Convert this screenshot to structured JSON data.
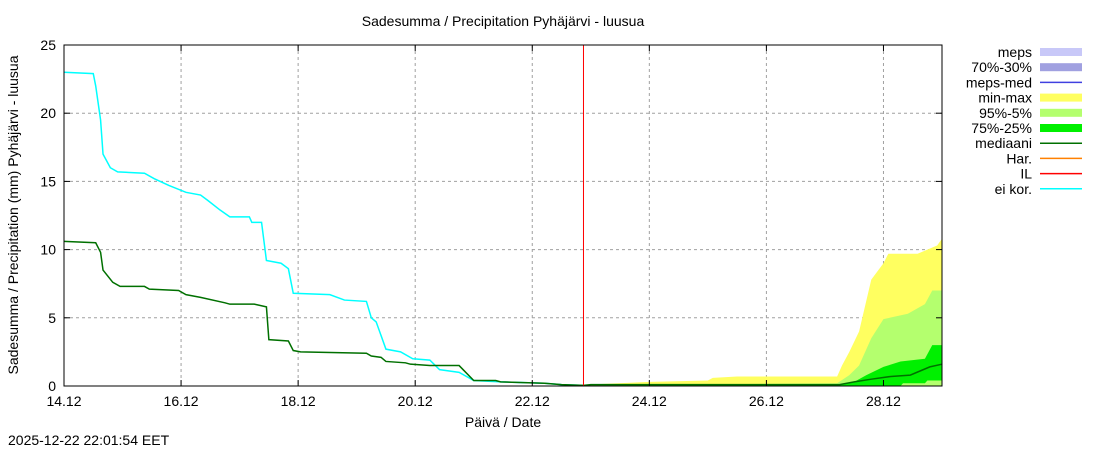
{
  "chart_data": {
    "type": "area",
    "title": "Sadesumma / Precipitation  Pyhäjärvi - luusua",
    "xlabel": "Päivä / Date",
    "ylabel": "Sadesumma / Precipitation (mm)  Pyhäjärvi - luusua",
    "timestamp": "2025-12-22 22:01:54 EET",
    "xlim": [
      "2025-12-14T00:00",
      "2025-12-29T00:00"
    ],
    "ylim": [
      0,
      25
    ],
    "grid": true,
    "legend_position": "right",
    "x_ticks": [
      {
        "t": "2025-12-14T00:00",
        "label": "14.12"
      },
      {
        "t": "2025-12-16T00:00",
        "label": "16.12"
      },
      {
        "t": "2025-12-18T00:00",
        "label": "18.12"
      },
      {
        "t": "2025-12-20T00:00",
        "label": "20.12"
      },
      {
        "t": "2025-12-22T00:00",
        "label": "22.12"
      },
      {
        "t": "2025-12-24T00:00",
        "label": "24.12"
      },
      {
        "t": "2025-12-26T00:00",
        "label": "26.12"
      },
      {
        "t": "2025-12-28T00:00",
        "label": "28.12"
      }
    ],
    "y_ticks": [
      0,
      5,
      10,
      15,
      20,
      25
    ],
    "legend": [
      {
        "name": "meps",
        "color": "#c8c8f8",
        "kind": "band"
      },
      {
        "name": "70%-30%",
        "color": "#a0a0e0",
        "kind": "band"
      },
      {
        "name": "meps-med",
        "color": "#4040e0",
        "kind": "line"
      },
      {
        "name": "min-max",
        "color": "#ffff60",
        "kind": "band"
      },
      {
        "name": "95%-5%",
        "color": "#b4ff6e",
        "kind": "band"
      },
      {
        "name": "75%-25%",
        "color": "#00f000",
        "kind": "band"
      },
      {
        "name": "mediaani",
        "color": "#007000",
        "kind": "line"
      },
      {
        "name": "Har.",
        "color": "#ff8000",
        "kind": "line"
      },
      {
        "name": "IL",
        "color": "#ff0000",
        "kind": "line"
      },
      {
        "name": "ei kor.",
        "color": "#00ffff",
        "kind": "line"
      }
    ],
    "IL_time": "2025-12-22T21:00",
    "bands": [
      {
        "name": "min-max",
        "color": "#ffff60",
        "upper": [
          [
            "2025-12-22T22:00",
            0.1
          ],
          [
            "2025-12-24T00:00",
            0.3
          ],
          [
            "2025-12-25T00:00",
            0.4
          ],
          [
            "2025-12-25T02:00",
            0.6
          ],
          [
            "2025-12-25T12:00",
            0.7
          ],
          [
            "2025-12-27T05:00",
            0.7
          ],
          [
            "2025-12-27T07:00",
            1.5
          ],
          [
            "2025-12-27T10:00",
            2.5
          ],
          [
            "2025-12-27T14:00",
            4.0
          ],
          [
            "2025-12-27T19:00",
            7.8
          ],
          [
            "2025-12-28T00:00",
            9.0
          ],
          [
            "2025-12-28T02:00",
            9.7
          ],
          [
            "2025-12-28T14:00",
            9.7
          ],
          [
            "2025-12-28T22:00",
            10.3
          ],
          [
            "2025-12-29T00:00",
            10.8
          ]
        ],
        "lower": [
          [
            "2025-12-22T22:00",
            0
          ],
          [
            "2025-12-29T00:00",
            0
          ]
        ]
      },
      {
        "name": "95%-5%",
        "color": "#b4ff6e",
        "upper": [
          [
            "2025-12-22T22:00",
            0.05
          ],
          [
            "2025-12-27T05:00",
            0.2
          ],
          [
            "2025-12-27T10:00",
            0.8
          ],
          [
            "2025-12-27T14:00",
            1.5
          ],
          [
            "2025-12-27T19:00",
            3.5
          ],
          [
            "2025-12-28T00:00",
            4.9
          ],
          [
            "2025-12-28T10:00",
            5.3
          ],
          [
            "2025-12-28T17:00",
            6.0
          ],
          [
            "2025-12-28T20:00",
            7.0
          ],
          [
            "2025-12-29T00:00",
            7.0
          ]
        ],
        "lower": [
          [
            "2025-12-22T22:00",
            0
          ],
          [
            "2025-12-29T00:00",
            0
          ]
        ]
      },
      {
        "name": "75%-25%",
        "color": "#00f000",
        "upper": [
          [
            "2025-12-22T22:00",
            0.05
          ],
          [
            "2025-12-27T05:00",
            0.1
          ],
          [
            "2025-12-27T12:00",
            0.3
          ],
          [
            "2025-12-27T17:00",
            0.8
          ],
          [
            "2025-12-28T00:00",
            1.4
          ],
          [
            "2025-12-28T07:00",
            1.8
          ],
          [
            "2025-12-28T17:00",
            2.0
          ],
          [
            "2025-12-28T20:00",
            3.0
          ],
          [
            "2025-12-29T00:00",
            3.0
          ]
        ],
        "lower": [
          [
            "2025-12-22T22:00",
            0
          ],
          [
            "2025-12-28T07:00",
            0
          ],
          [
            "2025-12-28T08:00",
            0.2
          ],
          [
            "2025-12-28T17:00",
            0.2
          ],
          [
            "2025-12-28T18:00",
            0.4
          ],
          [
            "2025-12-29T00:00",
            0.4
          ]
        ]
      }
    ],
    "series": [
      {
        "name": "ei kor.",
        "color": "#00ffff",
        "points": [
          [
            "2025-12-14T00:00",
            23.0
          ],
          [
            "2025-12-14T12:00",
            22.9
          ],
          [
            "2025-12-14T13:00",
            22.0
          ],
          [
            "2025-12-14T15:00",
            19.5
          ],
          [
            "2025-12-14T16:00",
            17.0
          ],
          [
            "2025-12-14T19:00",
            16.0
          ],
          [
            "2025-12-14T22:00",
            15.7
          ],
          [
            "2025-12-15T09:00",
            15.6
          ],
          [
            "2025-12-15T13:00",
            15.2
          ],
          [
            "2025-12-15T19:00",
            14.7
          ],
          [
            "2025-12-16T02:00",
            14.2
          ],
          [
            "2025-12-16T08:00",
            14.0
          ],
          [
            "2025-12-16T11:00",
            13.6
          ],
          [
            "2025-12-16T16:00",
            12.9
          ],
          [
            "2025-12-16T20:00",
            12.4
          ],
          [
            "2025-12-17T04:00",
            12.4
          ],
          [
            "2025-12-17T05:00",
            12.0
          ],
          [
            "2025-12-17T09:00",
            12.0
          ],
          [
            "2025-12-17T11:00",
            9.2
          ],
          [
            "2025-12-17T17:00",
            9.0
          ],
          [
            "2025-12-17T20:00",
            8.6
          ],
          [
            "2025-12-17T22:00",
            6.8
          ],
          [
            "2025-12-18T13:00",
            6.7
          ],
          [
            "2025-12-18T19:00",
            6.3
          ],
          [
            "2025-12-19T04:00",
            6.2
          ],
          [
            "2025-12-19T06:00",
            5.0
          ],
          [
            "2025-12-19T08:00",
            4.7
          ],
          [
            "2025-12-19T12:00",
            2.7
          ],
          [
            "2025-12-19T18:00",
            2.5
          ],
          [
            "2025-12-19T23:00",
            2.0
          ],
          [
            "2025-12-20T06:00",
            1.9
          ],
          [
            "2025-12-20T10:00",
            1.2
          ],
          [
            "2025-12-20T18:00",
            1.0
          ],
          [
            "2025-12-21T00:00",
            0.4
          ],
          [
            "2025-12-21T11:00",
            0.3
          ],
          [
            "2025-12-22T05:00",
            0.2
          ],
          [
            "2025-12-22T12:00",
            0.1
          ],
          [
            "2025-12-22T21:00",
            0.05
          ]
        ]
      },
      {
        "name": "mediaani",
        "color": "#007000",
        "points": [
          [
            "2025-12-14T00:00",
            10.6
          ],
          [
            "2025-12-14T13:00",
            10.5
          ],
          [
            "2025-12-14T15:00",
            9.8
          ],
          [
            "2025-12-14T16:00",
            8.5
          ],
          [
            "2025-12-14T20:00",
            7.6
          ],
          [
            "2025-12-14T23:00",
            7.3
          ],
          [
            "2025-12-15T09:00",
            7.3
          ],
          [
            "2025-12-15T11:00",
            7.1
          ],
          [
            "2025-12-15T23:00",
            7.0
          ],
          [
            "2025-12-16T02:00",
            6.7
          ],
          [
            "2025-12-16T08:00",
            6.5
          ],
          [
            "2025-12-16T18:00",
            6.1
          ],
          [
            "2025-12-16T20:00",
            6.0
          ],
          [
            "2025-12-17T06:00",
            6.0
          ],
          [
            "2025-12-17T11:00",
            5.8
          ],
          [
            "2025-12-17T12:00",
            3.4
          ],
          [
            "2025-12-17T20:00",
            3.3
          ],
          [
            "2025-12-17T22:00",
            2.6
          ],
          [
            "2025-12-18T01:00",
            2.5
          ],
          [
            "2025-12-19T04:00",
            2.4
          ],
          [
            "2025-12-19T06:00",
            2.2
          ],
          [
            "2025-12-19T10:00",
            2.1
          ],
          [
            "2025-12-19T12:00",
            1.8
          ],
          [
            "2025-12-19T20:00",
            1.7
          ],
          [
            "2025-12-19T22:00",
            1.6
          ],
          [
            "2025-12-20T06:00",
            1.5
          ],
          [
            "2025-12-20T18:00",
            1.5
          ],
          [
            "2025-12-21T00:00",
            0.4
          ],
          [
            "2025-12-21T09:00",
            0.4
          ],
          [
            "2025-12-21T11:00",
            0.3
          ],
          [
            "2025-12-22T05:00",
            0.2
          ],
          [
            "2025-12-22T12:00",
            0.1
          ],
          [
            "2025-12-22T21:00",
            0.05
          ],
          [
            "2025-12-23T00:00",
            0.1
          ],
          [
            "2025-12-27T06:00",
            0.1
          ],
          [
            "2025-12-27T12:00",
            0.3
          ],
          [
            "2025-12-27T19:00",
            0.5
          ],
          [
            "2025-12-28T03:00",
            0.7
          ],
          [
            "2025-12-28T11:00",
            0.8
          ],
          [
            "2025-12-28T15:00",
            1.1
          ],
          [
            "2025-12-28T19:00",
            1.4
          ],
          [
            "2025-12-29T00:00",
            1.6
          ]
        ]
      }
    ]
  }
}
